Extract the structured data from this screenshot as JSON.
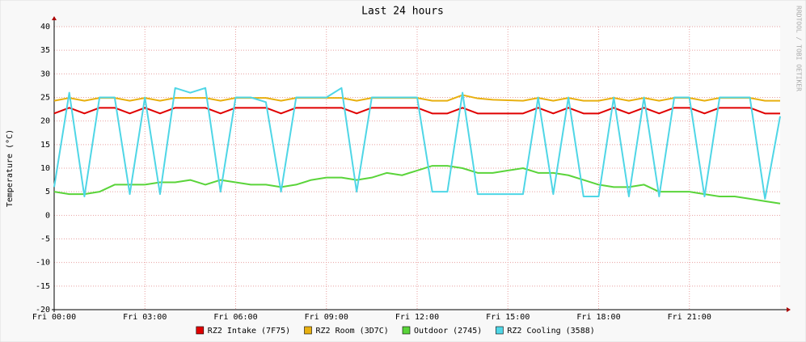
{
  "chart_data": {
    "type": "line",
    "title": "Last 24 hours",
    "y_label": "Temperature (°C)",
    "watermark": "RRDTOOL / TOBI OETIKER",
    "x": [
      0,
      0.5,
      1,
      1.5,
      2,
      2.5,
      3,
      3.5,
      4,
      4.5,
      5,
      5.5,
      6,
      6.5,
      7,
      7.5,
      8,
      8.5,
      9,
      9.5,
      10,
      10.5,
      11,
      11.5,
      12,
      12.5,
      13,
      13.5,
      14,
      14.5,
      15,
      15.5,
      16,
      16.5,
      17,
      17.5,
      18,
      18.5,
      19,
      19.5,
      20,
      20.5,
      21,
      21.5,
      22,
      22.5,
      23,
      23.5,
      24
    ],
    "xlim": [
      0,
      24
    ],
    "xticks": [
      {
        "value": 0,
        "label": "Fri 00:00"
      },
      {
        "value": 3,
        "label": "Fri 03:00"
      },
      {
        "value": 6,
        "label": "Fri 06:00"
      },
      {
        "value": 9,
        "label": "Fri 09:00"
      },
      {
        "value": 12,
        "label": "Fri 12:00"
      },
      {
        "value": 15,
        "label": "Fri 15:00"
      },
      {
        "value": 18,
        "label": "Fri 18:00"
      },
      {
        "value": 21,
        "label": "Fri 21:00"
      }
    ],
    "ylim": [
      -20,
      40
    ],
    "yticks": [
      -20,
      -15,
      -10,
      -5,
      0,
      5,
      10,
      15,
      20,
      25,
      30,
      35,
      40
    ],
    "grid": true,
    "series": [
      {
        "name": "RZ2 Intake (7F75)",
        "color": "#e00000",
        "values": [
          21.6,
          22.8,
          21.6,
          22.8,
          22.8,
          21.6,
          22.8,
          21.6,
          22.8,
          22.8,
          22.8,
          21.6,
          22.8,
          22.8,
          22.8,
          21.6,
          22.8,
          22.8,
          22.8,
          22.8,
          21.6,
          22.8,
          22.8,
          22.8,
          22.8,
          21.6,
          21.6,
          22.8,
          21.6,
          21.6,
          21.6,
          21.6,
          22.8,
          21.6,
          22.8,
          21.6,
          21.6,
          22.8,
          21.6,
          22.8,
          21.6,
          22.8,
          22.8,
          21.6,
          22.8,
          22.8,
          22.8,
          21.6,
          21.6
        ]
      },
      {
        "name": "RZ2 Room (3D7C)",
        "color": "#e8b010",
        "values": [
          24.3,
          24.9,
          24.3,
          24.9,
          24.9,
          24.3,
          24.9,
          24.3,
          24.9,
          24.9,
          24.9,
          24.3,
          24.9,
          24.9,
          24.9,
          24.3,
          24.9,
          24.9,
          24.9,
          24.9,
          24.3,
          24.9,
          24.9,
          24.9,
          24.9,
          24.3,
          24.3,
          25.5,
          24.8,
          24.5,
          24.4,
          24.3,
          24.9,
          24.3,
          24.9,
          24.3,
          24.3,
          24.9,
          24.3,
          24.9,
          24.3,
          24.9,
          24.9,
          24.3,
          24.9,
          24.9,
          24.9,
          24.3,
          24.3
        ]
      },
      {
        "name": "Outdoor (2745)",
        "color": "#5ad43a",
        "values": [
          5,
          4.5,
          4.5,
          5,
          6.5,
          6.5,
          6.5,
          7,
          7,
          7.5,
          6.5,
          7.5,
          7,
          6.5,
          6.5,
          6,
          6.5,
          7.5,
          8,
          8,
          7.5,
          8,
          9,
          8.5,
          9.5,
          10.5,
          10.5,
          10,
          9,
          9,
          9.5,
          10,
          9,
          9,
          8.5,
          7.5,
          6.5,
          6,
          6,
          6.5,
          5,
          5,
          5,
          4.5,
          4,
          4,
          3.5,
          3,
          2.5
        ]
      },
      {
        "name": "RZ2 Cooling (3588)",
        "color": "#4fd6e6",
        "values": [
          6,
          26,
          4,
          25,
          25,
          4.5,
          25,
          4.5,
          27,
          26,
          27,
          5,
          25,
          25,
          24,
          5,
          25,
          25,
          25,
          27,
          5,
          25,
          25,
          25,
          25,
          5,
          5,
          26,
          4.5,
          4.5,
          4.5,
          4.5,
          25,
          4.5,
          25,
          4,
          4,
          25,
          4,
          25,
          4,
          25,
          25,
          4,
          25,
          25,
          25,
          3.5,
          21
        ]
      }
    ]
  }
}
